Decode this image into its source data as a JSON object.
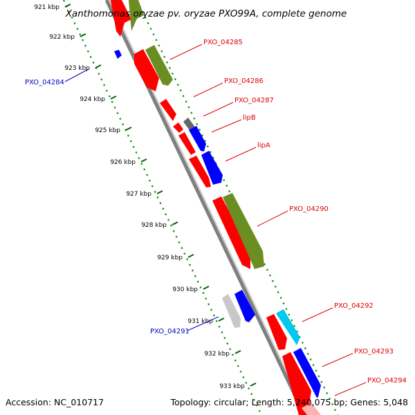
{
  "title": "Xanthomonas oryzae pv. oryzae PXO99A, complete genome",
  "footer": {
    "accession": "Accession: NC_010717",
    "summary": "Topology: circular; Length: 5,240,075 bp; Genes: 5,048"
  },
  "colors": {
    "background": "#ffffff",
    "backbone": "#7f7f7f",
    "dots": "#1a8c1a",
    "red_gene": "#ff0000",
    "blue_gene": "#0000ff",
    "olive_gene": "#6b8e23",
    "cyan_gene": "#00c8f0",
    "grey_gene": "#666666",
    "lightgrey_gene": "#c8c8c8",
    "label_red": "#dd0000",
    "label_blue": "#0000bb"
  },
  "ticks": [
    {
      "label": "921 kbp"
    },
    {
      "label": "922 kbp"
    },
    {
      "label": "923 kbp"
    },
    {
      "label": "924 kbp"
    },
    {
      "label": "925 kbp"
    },
    {
      "label": "926 kbp"
    },
    {
      "label": "927 kbp"
    },
    {
      "label": "928 kbp"
    },
    {
      "label": "929 kbp"
    },
    {
      "label": "930 kbp"
    },
    {
      "label": "931 kbp"
    },
    {
      "label": "932 kbp"
    },
    {
      "label": "933 kbp"
    }
  ],
  "gene_labels": [
    {
      "id": "PXO_04284",
      "color": "blue"
    },
    {
      "id": "PXO_04285",
      "color": "red"
    },
    {
      "id": "PXO_04286",
      "color": "red"
    },
    {
      "id": "PXO_04287",
      "color": "red"
    },
    {
      "id": "lipB",
      "color": "red"
    },
    {
      "id": "lipA",
      "color": "red"
    },
    {
      "id": "PXO_04290",
      "color": "red"
    },
    {
      "id": "PXO_04291",
      "color": "blue"
    },
    {
      "id": "PXO_04292",
      "color": "red"
    },
    {
      "id": "PXO_04293",
      "color": "red"
    },
    {
      "id": "PXO_04294",
      "color": "red"
    }
  ]
}
